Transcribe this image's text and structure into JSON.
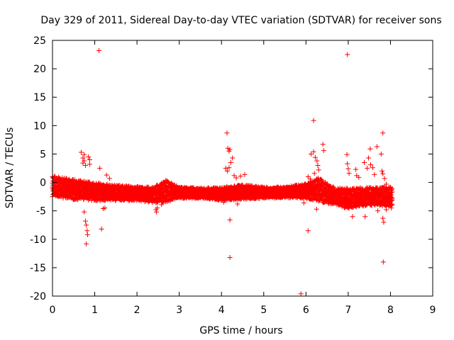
{
  "chart_data": {
    "type": "scatter",
    "title": "Day 329 of 2011, Sidereal Day-to-day VTEC variation (SDTVAR) for receiver sons",
    "xlabel": "GPS time / hours",
    "ylabel": "SDTVAR / TECUs",
    "xlim": [
      0,
      9
    ],
    "ylim": [
      -20,
      25
    ],
    "xticks": [
      0,
      1,
      2,
      3,
      4,
      5,
      6,
      7,
      8,
      9
    ],
    "yticks": [
      25,
      20,
      15,
      10,
      5,
      0,
      -5,
      -10,
      -15,
      -20
    ],
    "grid": false,
    "legend": "none",
    "marker": "+",
    "color": "#ff0000",
    "band_profile": [
      {
        "x": 0.0,
        "lo": -2.5,
        "hi": 1.2
      },
      {
        "x": 0.5,
        "lo": -3.0,
        "hi": 0.5
      },
      {
        "x": 1.0,
        "lo": -3.2,
        "hi": 0.0
      },
      {
        "x": 1.5,
        "lo": -3.2,
        "hi": -0.5
      },
      {
        "x": 2.0,
        "lo": -3.2,
        "hi": -0.7
      },
      {
        "x": 2.4,
        "lo": -3.6,
        "hi": -0.8
      },
      {
        "x": 2.7,
        "lo": -3.4,
        "hi": 0.4
      },
      {
        "x": 3.0,
        "lo": -2.8,
        "hi": -0.8
      },
      {
        "x": 3.5,
        "lo": -2.8,
        "hi": -1.0
      },
      {
        "x": 4.0,
        "lo": -3.2,
        "hi": -0.9
      },
      {
        "x": 4.5,
        "lo": -3.0,
        "hi": -0.4
      },
      {
        "x": 5.0,
        "lo": -2.8,
        "hi": -0.8
      },
      {
        "x": 5.5,
        "lo": -2.7,
        "hi": -0.8
      },
      {
        "x": 6.0,
        "lo": -2.8,
        "hi": -0.2
      },
      {
        "x": 6.3,
        "lo": -3.4,
        "hi": 0.8
      },
      {
        "x": 6.7,
        "lo": -4.0,
        "hi": -1.0
      },
      {
        "x": 7.0,
        "lo": -4.6,
        "hi": -1.0
      },
      {
        "x": 7.5,
        "lo": -4.0,
        "hi": -0.9
      },
      {
        "x": 8.0,
        "lo": -4.3,
        "hi": -0.8
      },
      {
        "x": 8.05,
        "lo": -4.3,
        "hi": -1.0
      }
    ],
    "outliers": [
      {
        "x": 1.1,
        "y": 23.2
      },
      {
        "x": 6.98,
        "y": 22.5
      },
      {
        "x": 6.18,
        "y": 10.9
      },
      {
        "x": 4.13,
        "y": 8.7
      },
      {
        "x": 7.82,
        "y": 8.7
      },
      {
        "x": 6.4,
        "y": 6.7
      },
      {
        "x": 7.68,
        "y": 6.3
      },
      {
        "x": 7.52,
        "y": 5.9
      },
      {
        "x": 6.42,
        "y": 5.6
      },
      {
        "x": 4.15,
        "y": 6.0
      },
      {
        "x": 4.18,
        "y": 5.5
      },
      {
        "x": 4.2,
        "y": 5.8
      },
      {
        "x": 0.68,
        "y": 5.3
      },
      {
        "x": 0.75,
        "y": 4.9
      },
      {
        "x": 0.72,
        "y": 4.3
      },
      {
        "x": 0.75,
        "y": 3.8
      },
      {
        "x": 0.72,
        "y": 3.4
      },
      {
        "x": 0.78,
        "y": 3.0
      },
      {
        "x": 0.85,
        "y": 4.5
      },
      {
        "x": 0.88,
        "y": 4.0
      },
      {
        "x": 0.88,
        "y": 3.2
      },
      {
        "x": 1.12,
        "y": 2.5
      },
      {
        "x": 1.28,
        "y": 1.3
      },
      {
        "x": 1.35,
        "y": 0.7
      },
      {
        "x": 4.1,
        "y": 2.5
      },
      {
        "x": 4.14,
        "y": 2.0
      },
      {
        "x": 4.18,
        "y": 2.6
      },
      {
        "x": 4.22,
        "y": 3.5
      },
      {
        "x": 4.26,
        "y": 4.3
      },
      {
        "x": 4.3,
        "y": 1.2
      },
      {
        "x": 4.35,
        "y": 0.8
      },
      {
        "x": 4.45,
        "y": 1.1
      },
      {
        "x": 4.55,
        "y": 1.4
      },
      {
        "x": 6.12,
        "y": 5.0
      },
      {
        "x": 6.18,
        "y": 5.4
      },
      {
        "x": 6.22,
        "y": 4.4
      },
      {
        "x": 6.26,
        "y": 3.8
      },
      {
        "x": 6.28,
        "y": 3.0
      },
      {
        "x": 6.3,
        "y": 2.2
      },
      {
        "x": 6.2,
        "y": 1.6
      },
      {
        "x": 6.05,
        "y": 1.0
      },
      {
        "x": 6.1,
        "y": 0.6
      },
      {
        "x": 6.97,
        "y": 4.9
      },
      {
        "x": 6.98,
        "y": 3.3
      },
      {
        "x": 7.0,
        "y": 2.4
      },
      {
        "x": 7.02,
        "y": 1.6
      },
      {
        "x": 7.18,
        "y": 2.3
      },
      {
        "x": 7.2,
        "y": 1.2
      },
      {
        "x": 7.25,
        "y": 0.9
      },
      {
        "x": 7.38,
        "y": 3.5
      },
      {
        "x": 7.45,
        "y": 2.5
      },
      {
        "x": 7.48,
        "y": 4.3
      },
      {
        "x": 7.53,
        "y": 3.1
      },
      {
        "x": 7.58,
        "y": 2.6
      },
      {
        "x": 7.62,
        "y": 1.4
      },
      {
        "x": 7.78,
        "y": 5.0
      },
      {
        "x": 7.8,
        "y": 2.0
      },
      {
        "x": 7.82,
        "y": 1.5
      },
      {
        "x": 7.86,
        "y": 0.7
      },
      {
        "x": 7.9,
        "y": -0.3
      },
      {
        "x": 0.75,
        "y": -5.2
      },
      {
        "x": 0.78,
        "y": -6.8
      },
      {
        "x": 0.8,
        "y": -7.5
      },
      {
        "x": 0.82,
        "y": -8.5
      },
      {
        "x": 0.83,
        "y": -9.2
      },
      {
        "x": 0.8,
        "y": -10.8
      },
      {
        "x": 1.16,
        "y": -8.2
      },
      {
        "x": 1.2,
        "y": -4.6
      },
      {
        "x": 1.24,
        "y": -4.5
      },
      {
        "x": 2.45,
        "y": -4.8
      },
      {
        "x": 2.46,
        "y": -5.2
      },
      {
        "x": 2.48,
        "y": -4.5
      },
      {
        "x": 2.58,
        "y": -3.9
      },
      {
        "x": 4.05,
        "y": -3.5
      },
      {
        "x": 4.2,
        "y": -6.6
      },
      {
        "x": 4.2,
        "y": -13.2
      },
      {
        "x": 4.38,
        "y": -3.8
      },
      {
        "x": 5.88,
        "y": -19.6
      },
      {
        "x": 6.05,
        "y": -8.5
      },
      {
        "x": 5.95,
        "y": -3.6
      },
      {
        "x": 6.25,
        "y": -4.7
      },
      {
        "x": 7.1,
        "y": -6.0
      },
      {
        "x": 7.4,
        "y": -6.0
      },
      {
        "x": 7.7,
        "y": -5.0
      },
      {
        "x": 7.82,
        "y": -6.3
      },
      {
        "x": 7.84,
        "y": -7.0
      },
      {
        "x": 7.83,
        "y": -14.0
      },
      {
        "x": 7.9,
        "y": -4.8
      },
      {
        "x": 8.02,
        "y": -4.5
      }
    ]
  }
}
